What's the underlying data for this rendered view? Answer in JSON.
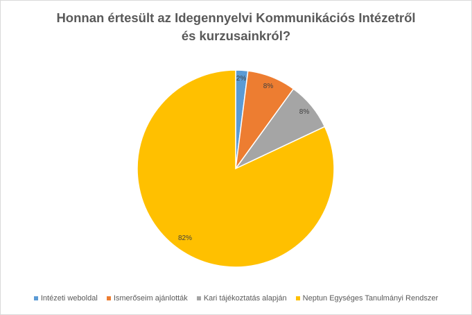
{
  "chart_data": {
    "type": "pie",
    "title": "Honnan  értesült az Idegennyelvi Kommunikációs  Intézetről\nés kurzusainkról?",
    "categories": [
      "Intézeti weboldal",
      "Ismerőseim ajánlották",
      "Kari tájékoztatás alapján",
      "Neptun Egységes Tanulmányi Rendszer"
    ],
    "values": [
      2,
      8,
      8,
      82
    ],
    "data_labels": [
      "2%",
      "8%",
      "8%",
      "82%"
    ],
    "colors": [
      "#5b9bd5",
      "#ed7d31",
      "#a5a5a5",
      "#ffc000"
    ],
    "legend_position": "bottom",
    "start_angle": "top",
    "direction": "clockwise"
  }
}
